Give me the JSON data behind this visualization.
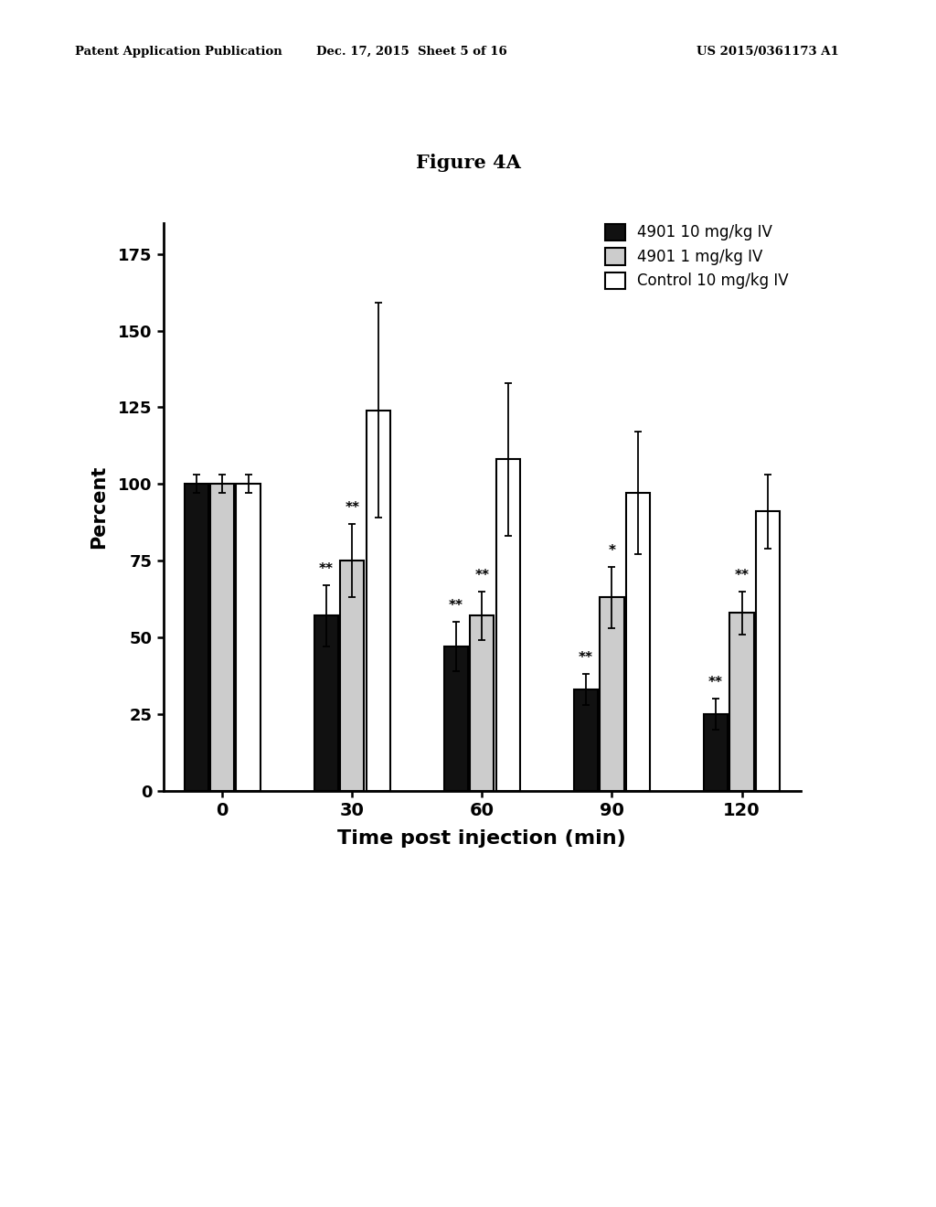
{
  "title": "Figure 4A",
  "xlabel": "Time post injection (min)",
  "ylabel": "Percent",
  "x_ticks": [
    0,
    30,
    60,
    90,
    120
  ],
  "ylim": [
    0,
    185
  ],
  "yticks": [
    0,
    25,
    50,
    75,
    100,
    125,
    150,
    175
  ],
  "series": [
    {
      "label": "4901 10 mg/kg IV",
      "color": "#111111",
      "hatch": null,
      "values": [
        100,
        57,
        47,
        33,
        25
      ],
      "errors": [
        3,
        10,
        8,
        5,
        5
      ]
    },
    {
      "label": "4901 1 mg/kg IV",
      "color": "#cccccc",
      "hatch": null,
      "values": [
        100,
        75,
        57,
        63,
        58
      ],
      "errors": [
        3,
        12,
        8,
        10,
        7
      ]
    },
    {
      "label": "Control 10 mg/kg IV",
      "color": "#ffffff",
      "hatch": null,
      "values": [
        100,
        124,
        108,
        97,
        91
      ],
      "errors": [
        3,
        35,
        25,
        20,
        12
      ]
    }
  ],
  "significance": {
    "30": [
      "**",
      "**",
      null
    ],
    "60": [
      "**",
      "**",
      null
    ],
    "90": [
      "**",
      "*",
      null
    ],
    "120": [
      "**",
      "**",
      null
    ]
  },
  "bar_width": 0.2,
  "background_color": "#ffffff",
  "header_left": "Patent Application Publication",
  "header_mid": "Dec. 17, 2015  Sheet 5 of 16",
  "header_right": "US 2015/0361173 A1"
}
